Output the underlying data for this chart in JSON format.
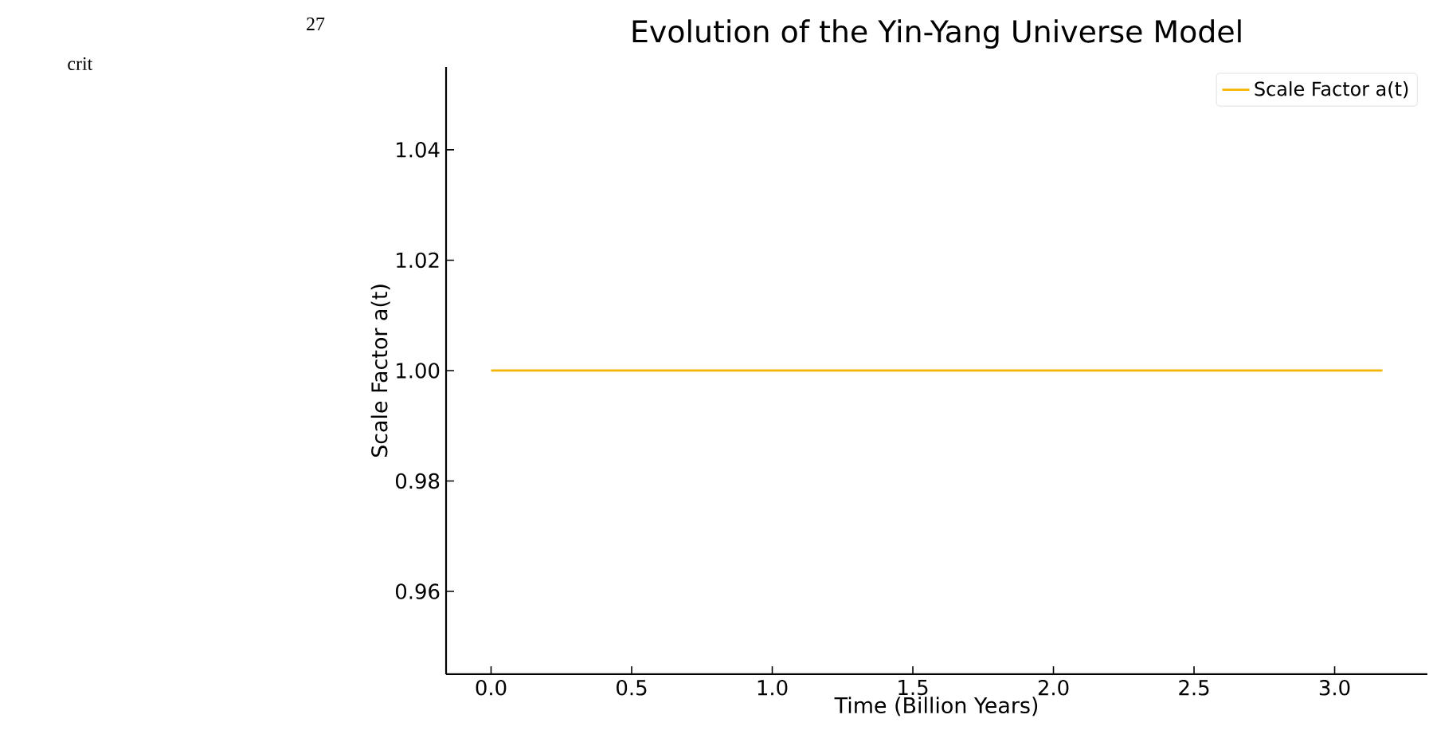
{
  "chart_data": {
    "type": "line",
    "title": "Evolution of the Yin-Yang Universe Model",
    "xlabel": "Time (Billion Years)",
    "ylabel": "Scale Factor a(t)",
    "annotations": [
      "crit",
      "27"
    ],
    "x": [
      0,
      3.17
    ],
    "series": [
      {
        "name": "Scale Factor a(t)",
        "color": "#f4b400",
        "values": [
          1,
          1
        ]
      }
    ],
    "xlim": [
      -0.16,
      3.33
    ],
    "ylim": [
      0.945,
      1.055
    ],
    "xticks": [
      {
        "value": 0,
        "label": "0.0"
      },
      0.5,
      {
        "value": 1,
        "label": "1.0"
      },
      1.5,
      {
        "value": 2,
        "label": "2.0"
      },
      2.5,
      {
        "value": 3,
        "label": "3.0"
      }
    ],
    "yticks": [
      0.96,
      0.98,
      {
        "value": 1,
        "label": "1.00"
      },
      1.02,
      1.04
    ],
    "legend": "top right",
    "grid": false
  }
}
